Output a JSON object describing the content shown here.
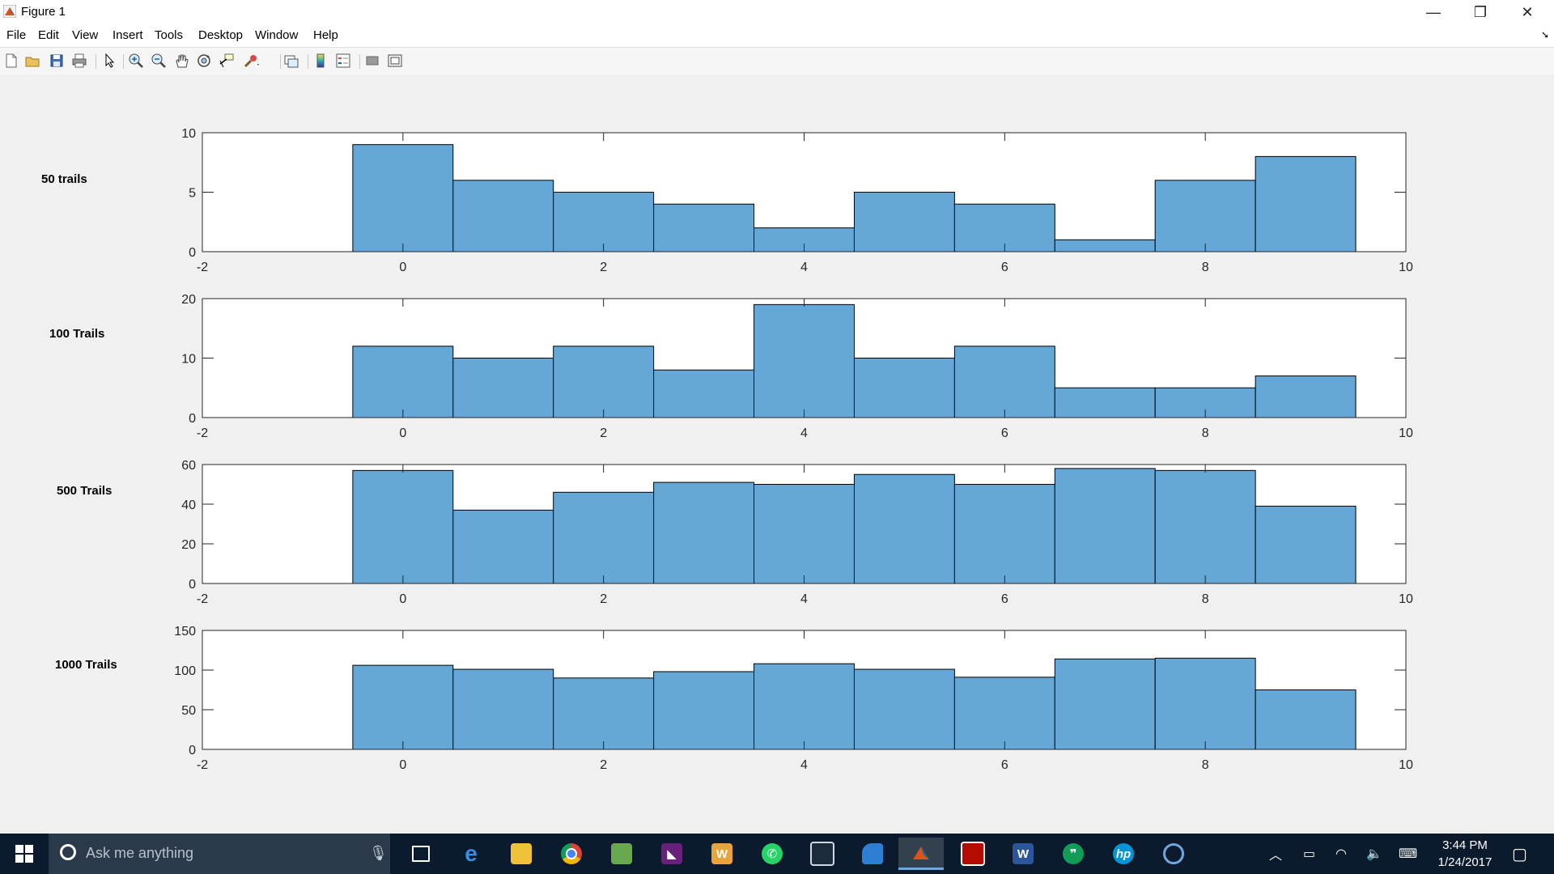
{
  "window": {
    "title": "Figure 1",
    "minimize_glyph": "—",
    "restore_glyph": "❐",
    "close_glyph": "✕"
  },
  "menu": {
    "items": [
      "File",
      "Edit",
      "View",
      "Insert",
      "Tools",
      "Desktop",
      "Window",
      "Help"
    ],
    "dock_glyph": "➘"
  },
  "toolbar": {
    "icons": [
      "new-figure-icon",
      "open-file-icon",
      "save-icon",
      "print-icon",
      "select-arrow-icon",
      "zoom-in-icon",
      "zoom-out-icon",
      "pan-hand-icon",
      "rotate-3d-icon",
      "data-cursor-icon",
      "brush-icon",
      "link-plot-icon",
      "colorbar-icon",
      "legend-icon",
      "hide-plot-tools-icon",
      "show-plot-tools-icon"
    ]
  },
  "chart_data": [
    {
      "type": "bar",
      "title": "",
      "row_label": "50 trails",
      "categories": [
        0,
        1,
        2,
        3,
        4,
        5,
        6,
        7,
        8,
        9
      ],
      "values": [
        9,
        6,
        5,
        4,
        2,
        5,
        4,
        1,
        6,
        8
      ],
      "xlim": [
        -2,
        10
      ],
      "ylim": [
        0,
        10
      ],
      "xticks": [
        -2,
        0,
        2,
        4,
        6,
        8,
        10
      ],
      "yticks": [
        0,
        5,
        10
      ],
      "bar_color": "#65a8d8",
      "grid": false
    },
    {
      "type": "bar",
      "title": "",
      "row_label": "100 Trails",
      "categories": [
        0,
        1,
        2,
        3,
        4,
        5,
        6,
        7,
        8,
        9
      ],
      "values": [
        12,
        10,
        12,
        8,
        19,
        10,
        12,
        5,
        5,
        7
      ],
      "xlim": [
        -2,
        10
      ],
      "ylim": [
        0,
        20
      ],
      "xticks": [
        -2,
        0,
        2,
        4,
        6,
        8,
        10
      ],
      "yticks": [
        0,
        10,
        20
      ],
      "bar_color": "#65a8d8",
      "grid": false
    },
    {
      "type": "bar",
      "title": "",
      "row_label": "500 Trails",
      "categories": [
        0,
        1,
        2,
        3,
        4,
        5,
        6,
        7,
        8,
        9
      ],
      "values": [
        57,
        37,
        46,
        51,
        50,
        55,
        50,
        58,
        57,
        39
      ],
      "xlim": [
        -2,
        10
      ],
      "ylim": [
        0,
        60
      ],
      "xticks": [
        -2,
        0,
        2,
        4,
        6,
        8,
        10
      ],
      "yticks": [
        0,
        20,
        40,
        60
      ],
      "bar_color": "#65a8d8",
      "grid": false
    },
    {
      "type": "bar",
      "title": "",
      "row_label": "1000 Trails",
      "categories": [
        0,
        1,
        2,
        3,
        4,
        5,
        6,
        7,
        8,
        9
      ],
      "values": [
        106,
        101,
        90,
        98,
        108,
        101,
        91,
        114,
        115,
        75
      ],
      "xlim": [
        -2,
        10
      ],
      "ylim": [
        0,
        150
      ],
      "xticks": [
        -2,
        0,
        2,
        4,
        6,
        8,
        10
      ],
      "yticks": [
        0,
        50,
        100,
        150
      ],
      "bar_color": "#65a8d8",
      "grid": false
    }
  ],
  "taskbar": {
    "search_placeholder": "Ask me anything",
    "apps": [
      "task-view-icon",
      "edge-icon",
      "file-explorer-icon",
      "chrome-icon",
      "image-editor-icon",
      "visual-studio-icon",
      "word-icon",
      "whatsapp-icon",
      "virtualbox-icon",
      "shark-icon",
      "matlab-icon",
      "acrobat-icon",
      "word-doc-icon",
      "hangouts-icon",
      "hp-icon",
      "settings-ring-icon"
    ],
    "active_app": "matlab-icon",
    "clock_time": "3:44 PM",
    "clock_date": "1/24/2017"
  }
}
